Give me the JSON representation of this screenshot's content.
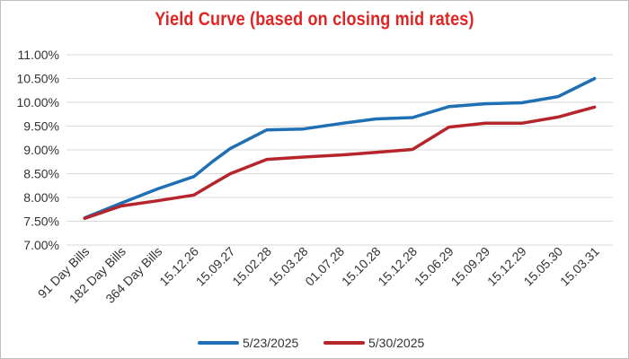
{
  "chart_data": {
    "type": "line",
    "title": "Yield Curve (based on closing mid rates)",
    "xlabel": "",
    "ylabel": "",
    "categories": [
      "91 Day Bills",
      "182 Day Bills",
      "364 Day Bills",
      "15.12.26",
      "15.09.27",
      "15.02.28",
      "15.03.28",
      "01.07.28",
      "15.10.28",
      "15.12.28",
      "15.06.29",
      "15.09.29",
      "15.12.29",
      "15.05.30",
      "15.03.31"
    ],
    "y_ticks": [
      "11.00%",
      "10.50%",
      "10.00%",
      "9.50%",
      "9.00%",
      "8.50%",
      "8.00%",
      "7.50%",
      "7.00%"
    ],
    "ylim": [
      7.0,
      11.0
    ],
    "grid": "horizontal",
    "legend_position": "bottom",
    "series": [
      {
        "name": "5/23/2025",
        "color": "#1f6fb4",
        "x": [
          0,
          1,
          2,
          3,
          3.5,
          4,
          5,
          6,
          7,
          8,
          9,
          10,
          11,
          12,
          13,
          14
        ],
        "values": [
          7.57,
          7.88,
          8.18,
          8.44,
          8.75,
          9.03,
          9.42,
          9.44,
          9.55,
          9.65,
          9.68,
          9.91,
          9.97,
          9.99,
          10.12,
          10.5
        ]
      },
      {
        "name": "5/30/2025",
        "color": "#b5252b",
        "x": [
          0,
          1,
          2,
          3,
          3.5,
          4,
          5,
          6,
          7,
          8,
          9,
          10,
          11,
          12,
          13,
          14
        ],
        "values": [
          7.56,
          7.82,
          7.93,
          8.05,
          8.28,
          8.5,
          8.8,
          8.85,
          8.89,
          8.95,
          9.01,
          9.48,
          9.56,
          9.56,
          9.69,
          9.9
        ]
      }
    ]
  }
}
